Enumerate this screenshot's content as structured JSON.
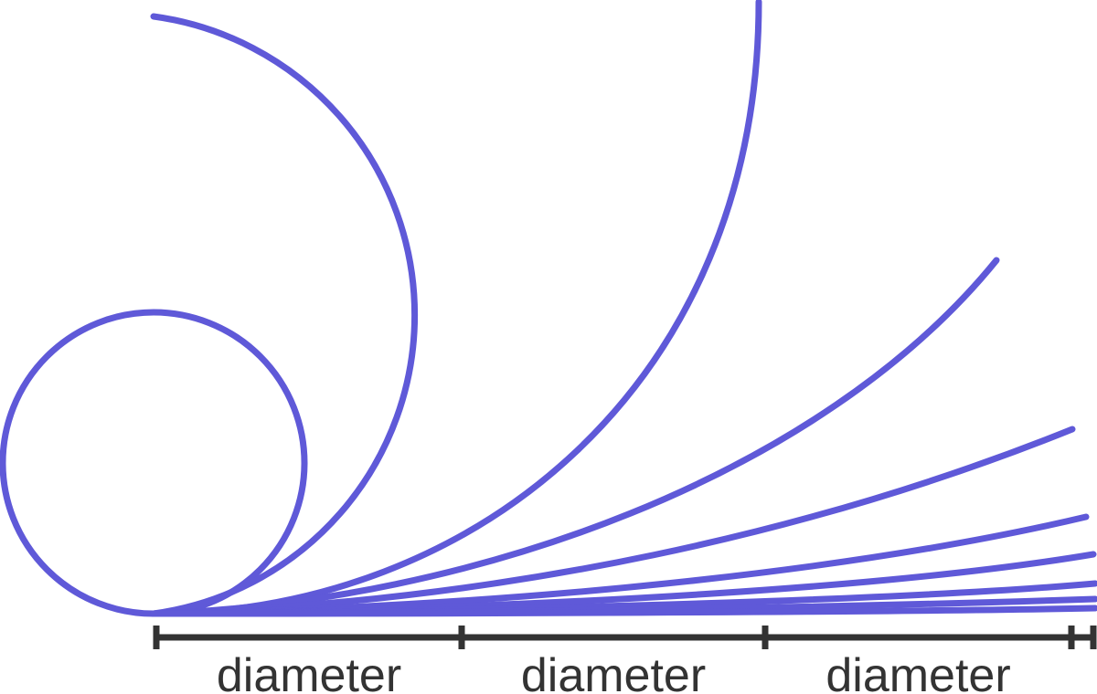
{
  "diagram": {
    "curve_color": "#5f59d8",
    "ruler_color": "#333333",
    "label_color": "#333333",
    "ruler": {
      "segments": [
        {
          "label": "diameter"
        },
        {
          "label": "diameter"
        },
        {
          "label": "diameter"
        }
      ]
    }
  }
}
